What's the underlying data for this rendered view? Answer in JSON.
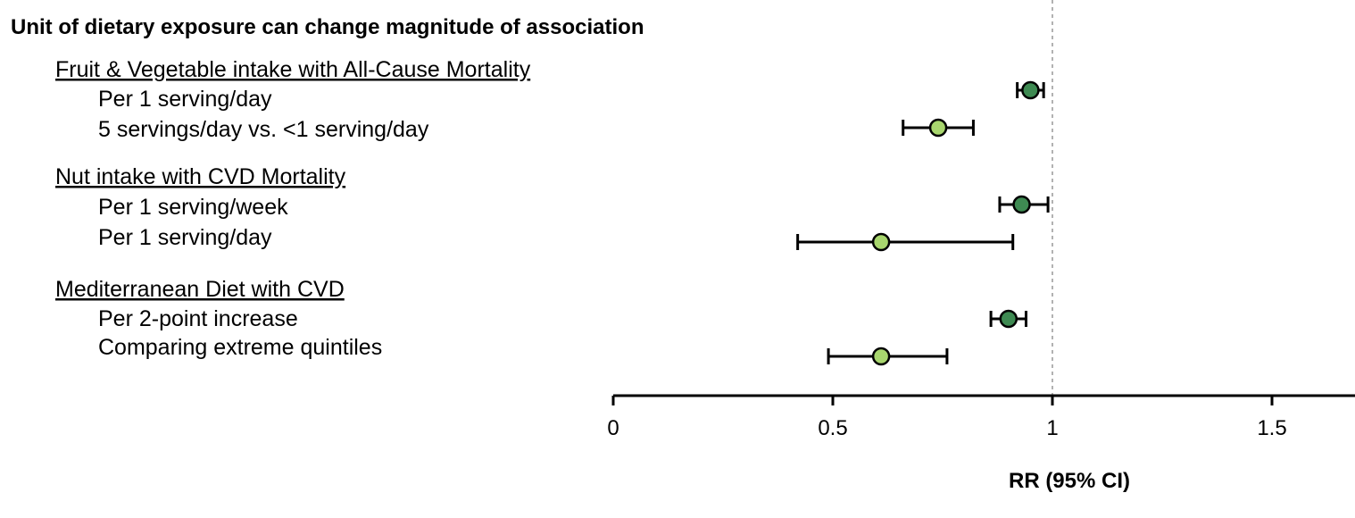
{
  "chart_data": {
    "type": "forest",
    "title": "Unit of dietary exposure can change magnitude of association",
    "xlabel": "RR (95% CI)",
    "xlim": [
      0,
      1.7
    ],
    "xticks": [
      0,
      0.5,
      1,
      1.5
    ],
    "xtick_labels": [
      "0",
      "0.5",
      "1",
      "1.5"
    ],
    "reference_line": 1,
    "colors": {
      "dark_marker": "#3e8a52",
      "light_marker": "#a8d66e",
      "axis": "#000000",
      "ref_line": "#999999"
    },
    "groups": [
      {
        "label": "Fruit & Vegetable intake with All-Cause Mortality",
        "rows": [
          {
            "label": "Per 1 serving/day",
            "rr": 0.95,
            "lower": 0.92,
            "upper": 0.98,
            "marker": "dark"
          },
          {
            "label": "5 servings/day vs. <1 serving/day",
            "rr": 0.74,
            "lower": 0.66,
            "upper": 0.82,
            "marker": "light"
          }
        ]
      },
      {
        "label": "Nut intake with CVD Mortality",
        "rows": [
          {
            "label": "Per 1 serving/week",
            "rr": 0.93,
            "lower": 0.88,
            "upper": 0.99,
            "marker": "dark"
          },
          {
            "label": "Per 1 serving/day",
            "rr": 0.61,
            "lower": 0.42,
            "upper": 0.91,
            "marker": "light"
          }
        ]
      },
      {
        "label": "Mediterranean Diet with CVD",
        "rows": [
          {
            "label": "Per 2-point increase",
            "rr": 0.9,
            "lower": 0.86,
            "upper": 0.94,
            "marker": "dark"
          },
          {
            "label": "Comparing extreme quintiles",
            "rr": 0.61,
            "lower": 0.49,
            "upper": 0.76,
            "marker": "light"
          }
        ]
      }
    ]
  }
}
